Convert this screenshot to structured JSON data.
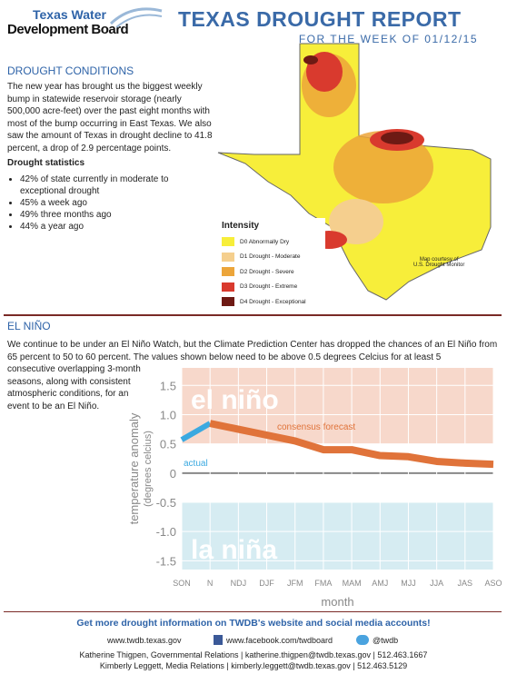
{
  "header": {
    "org_line1": "Texas Water",
    "org_line2": "Development Board",
    "title": "TEXAS DROUGHT REPORT",
    "subtitle": "FOR THE WEEK OF 01/12/15"
  },
  "drought_conditions": {
    "heading": "DROUGHT CONDITIONS",
    "paragraph": "The new year has brought us the biggest weekly bump in statewide reservoir storage (nearly 500,000 acre-feet) over the past eight months with most of the bump occurring in East Texas. We also saw the amount of Texas in drought decline to 41.8 percent, a drop of 2.9 percentage points.",
    "stats_heading": "Drought statistics",
    "stats": [
      "42% of state currently in moderate to exceptional drought",
      "45% a week ago",
      "49% three months ago",
      "44% a year ago"
    ]
  },
  "map": {
    "legend_title": "Intensity",
    "legend": [
      {
        "label": "D0 Abnormally Dry",
        "color": "#f7ee3a"
      },
      {
        "label": "D1 Drought - Moderate",
        "color": "#f5cf8e"
      },
      {
        "label": "D2 Drought - Severe",
        "color": "#eca53a"
      },
      {
        "label": "D3 Drought - Extreme",
        "color": "#d93a2e"
      },
      {
        "label": "D4 Drought - Exceptional",
        "color": "#6e1a14"
      }
    ],
    "credit_line1": "Map courtesy of",
    "credit_line2": "U.S. Drought Monitor"
  },
  "el_nino": {
    "heading": "EL NIÑO",
    "paragraph_wide": "We continue to be under an El Niño Watch, but the Climate Prediction Center has dropped the chances of an El Niño from 65 percent to 50 to 60 percent. The values shown below need to be above 0.5 degrees Celcius for at least 5",
    "paragraph_narrow": "consecutive overlapping 3-month seasons, along with consistent atmospheric conditions, for an event to be an El Niño."
  },
  "chart_data": {
    "type": "line",
    "categories": [
      "SON",
      "N",
      "NDJ",
      "DJF",
      "JFM",
      "FMA",
      "MAM",
      "AMJ",
      "MJJ",
      "JJA",
      "JAS",
      "ASO"
    ],
    "series": [
      {
        "name": "actual",
        "color": "#3ba9e0",
        "values": [
          0.57,
          0.85,
          null,
          null,
          null,
          null,
          null,
          null,
          null,
          null,
          null,
          null
        ]
      },
      {
        "name": "consensus forecast",
        "color": "#e0733a",
        "values": [
          null,
          0.85,
          0.75,
          0.65,
          0.55,
          0.4,
          0.4,
          0.3,
          0.28,
          0.2,
          0.17,
          0.15
        ]
      }
    ],
    "ylim": [
      -1.65,
      1.8
    ],
    "yticks": [
      -1.5,
      {
        "value": -1,
        "label": "-1.0"
      },
      -0.5,
      0,
      0.5,
      {
        "value": 1,
        "label": "1.0"
      },
      1.5
    ],
    "bands": [
      {
        "label": "el niño",
        "above": 0.5,
        "color": "#f7d8cb"
      },
      {
        "label": "la niña",
        "below": -0.5,
        "color": "#d6ecf2"
      }
    ],
    "y_label_line1": "temperature anomaly",
    "y_label_line2": "(degrees celcius)",
    "x_label": "month"
  },
  "footer": {
    "headline": "Get more drought information on TWDB's website and social media accounts!",
    "website": "www.twdb.texas.gov",
    "facebook": "www.facebook.com/twdboard",
    "twitter": "@twdb",
    "contact1": "Katherine Thigpen, Governmental Relations | katherine.thigpen@twdb.texas.gov | 512.463.1667",
    "contact2": "Kimberly Leggett, Media Relations | kimberly.leggett@twdb.texas.gov | 512.463.5129"
  }
}
